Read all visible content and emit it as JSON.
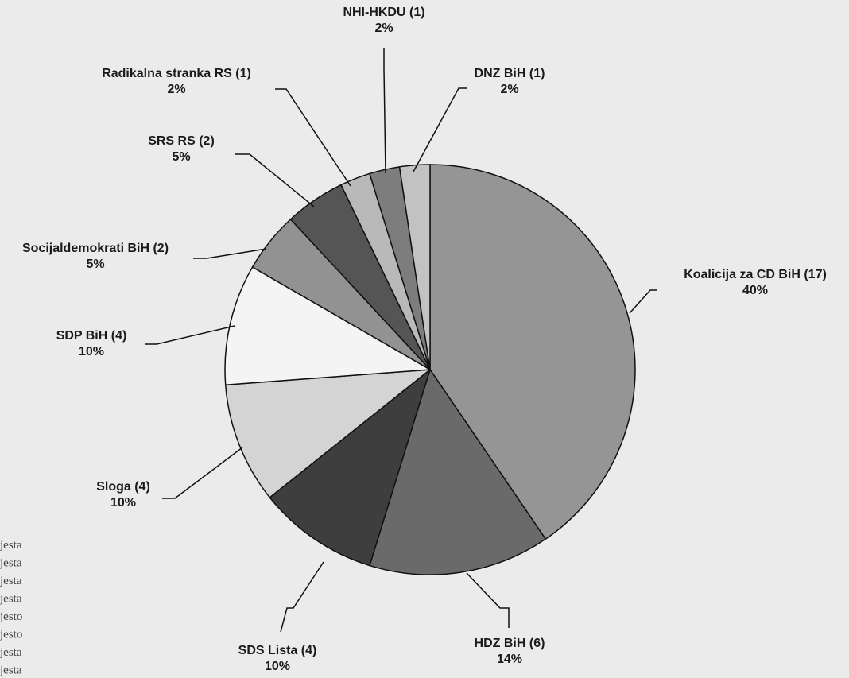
{
  "chart_data": {
    "type": "pie",
    "title": "",
    "slices": [
      {
        "label": "Koalicija za CD BiH (17)",
        "percent": "40%",
        "value": 17,
        "color": "#959595"
      },
      {
        "label": "HDZ BiH (6)",
        "percent": "14%",
        "value": 6,
        "color": "#6a6a6a"
      },
      {
        "label": "SDS Lista (4)",
        "percent": "10%",
        "value": 4,
        "color": "#3e3e3e"
      },
      {
        "label": "Sloga (4)",
        "percent": "10%",
        "value": 4,
        "color": "#d4d4d4"
      },
      {
        "label": "SDP BiH (4)",
        "percent": "10%",
        "value": 4,
        "color": "#f4f4f4"
      },
      {
        "label": "Socijaldemokrati BiH (2)",
        "percent": "5%",
        "value": 2,
        "color": "#929292"
      },
      {
        "label": "SRS RS (2)",
        "percent": "5%",
        "value": 2,
        "color": "#555555"
      },
      {
        "label": "Radikalna stranka RS (1)",
        "percent": "2%",
        "value": 1,
        "color": "#b9b9b9"
      },
      {
        "label": "NHI-HKDU (1)",
        "percent": "2%",
        "value": 1,
        "color": "#7d7d7d"
      },
      {
        "label": "DNZ BiH (1)",
        "percent": "2%",
        "value": 1,
        "color": "#c2c2c2"
      }
    ]
  },
  "side_text": [
    "jesta",
    "jesta",
    "jesta",
    "jesta",
    "jesto",
    "jesto",
    "jesta",
    "jesta"
  ]
}
